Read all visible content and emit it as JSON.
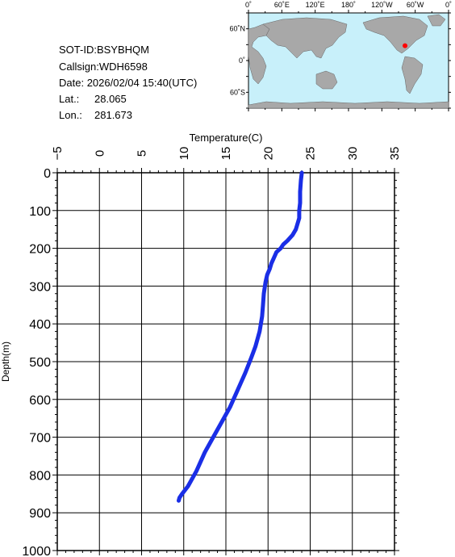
{
  "info": {
    "sot_id": "SOT-ID:BSYBHQM",
    "callsign": "Callsign:WDH6598",
    "date_label": "Date:",
    "date_value": "2026/02/04 15:40(UTC)",
    "lat_label": "Lat.:",
    "lat_value": "28.065",
    "lon_label": "Lon.:",
    "lon_value": "281.673"
  },
  "map": {
    "lon_labels": [
      "0˚",
      "60˚E",
      "120˚E",
      "180˚",
      "120˚W",
      "60˚W",
      "0˚"
    ],
    "lat_labels": [
      "60˚N",
      "0˚",
      "60˚S"
    ],
    "ocean_color": "#c8f0fa",
    "land_color": "#a8a8a8",
    "marker_color": "#ff0000",
    "marker_lon": 281.673,
    "marker_lat": 28.065
  },
  "chart_data": {
    "type": "line",
    "xlabel": "Temperature(C)",
    "ylabel": "Depth(m)",
    "xlim": [
      -5,
      35
    ],
    "ylim": [
      1000,
      0
    ],
    "x_ticks": [
      -5,
      0,
      5,
      10,
      15,
      20,
      25,
      30,
      35
    ],
    "y_ticks": [
      0,
      100,
      200,
      300,
      400,
      500,
      600,
      700,
      800,
      900,
      1000
    ],
    "grid": true,
    "line_color": "#1a2ee6",
    "series": [
      {
        "points": [
          [
            24.0,
            0
          ],
          [
            23.9,
            20
          ],
          [
            23.8,
            50
          ],
          [
            23.8,
            80
          ],
          [
            23.7,
            100
          ],
          [
            23.7,
            120
          ],
          [
            23.5,
            135
          ],
          [
            23.3,
            150
          ],
          [
            22.9,
            165
          ],
          [
            22.3,
            180
          ],
          [
            21.8,
            190
          ],
          [
            21.5,
            200
          ],
          [
            21.0,
            210
          ],
          [
            20.7,
            225
          ],
          [
            20.4,
            240
          ],
          [
            20.2,
            255
          ],
          [
            19.9,
            270
          ],
          [
            19.7,
            290
          ],
          [
            19.5,
            320
          ],
          [
            19.4,
            350
          ],
          [
            19.3,
            380
          ],
          [
            19.0,
            420
          ],
          [
            18.5,
            460
          ],
          [
            18.0,
            490
          ],
          [
            17.3,
            530
          ],
          [
            16.3,
            580
          ],
          [
            15.5,
            620
          ],
          [
            14.5,
            660
          ],
          [
            13.5,
            700
          ],
          [
            12.5,
            740
          ],
          [
            11.5,
            790
          ],
          [
            10.5,
            830
          ],
          [
            9.8,
            850
          ],
          [
            9.5,
            860
          ],
          [
            9.4,
            868
          ]
        ]
      }
    ]
  }
}
